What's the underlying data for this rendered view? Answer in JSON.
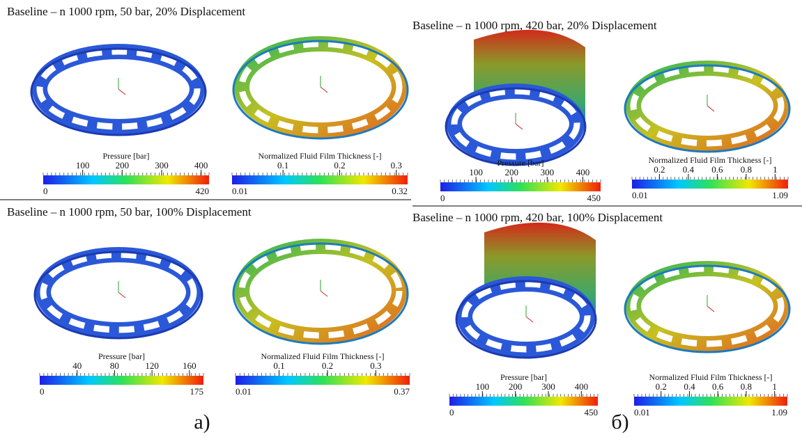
{
  "panels": [
    {
      "title": "Baseline – n 1000 rpm,  50 bar, 20% Displacement",
      "plots": [
        {
          "label": "Pressure [bar]",
          "ticks": [
            100,
            200,
            300,
            400
          ],
          "min": 0,
          "max": 420
        },
        {
          "label": "Normalized Fluid Film Thickness [-]",
          "ticks": [
            0.1,
            0.2,
            0.3
          ],
          "min": 0.01,
          "max": 0.32
        }
      ]
    },
    {
      "title": "Baseline – n 1000 rpm,  50 bar, 100% Displacement",
      "plots": [
        {
          "label": "Pressure [bar]",
          "ticks": [
            40,
            80,
            120,
            160
          ],
          "min": 0,
          "max": 175
        },
        {
          "label": "Normalized Fluid Film Thickness [-]",
          "ticks": [
            0.1,
            0.2,
            0.3
          ],
          "min": 0.01,
          "max": 0.37
        }
      ]
    },
    {
      "title": "Baseline – n 1000 rpm,  420 bar, 20% Displacement",
      "plots": [
        {
          "label": "Pressure [bar]",
          "ticks": [
            100,
            200,
            300,
            400
          ],
          "min": 0,
          "max": 450
        },
        {
          "label": "Normalized Fluid Film Thickness [-]",
          "ticks": [
            0.2,
            0.4,
            0.6,
            0.8,
            1
          ],
          "min": 0.01,
          "max": 1.09
        }
      ]
    },
    {
      "title": "Baseline – n 1000 rpm,  420 bar, 100% Displacement",
      "plots": [
        {
          "label": "Pressure [bar]",
          "ticks": [
            100,
            200,
            300,
            400
          ],
          "min": 0,
          "max": 450
        },
        {
          "label": "Normalized Fluid Film Thickness [-]",
          "ticks": [
            0.2,
            0.4,
            0.6,
            0.8,
            1
          ],
          "min": 0.01,
          "max": 1.09
        }
      ]
    }
  ],
  "captions": [
    "a)",
    "б)"
  ]
}
